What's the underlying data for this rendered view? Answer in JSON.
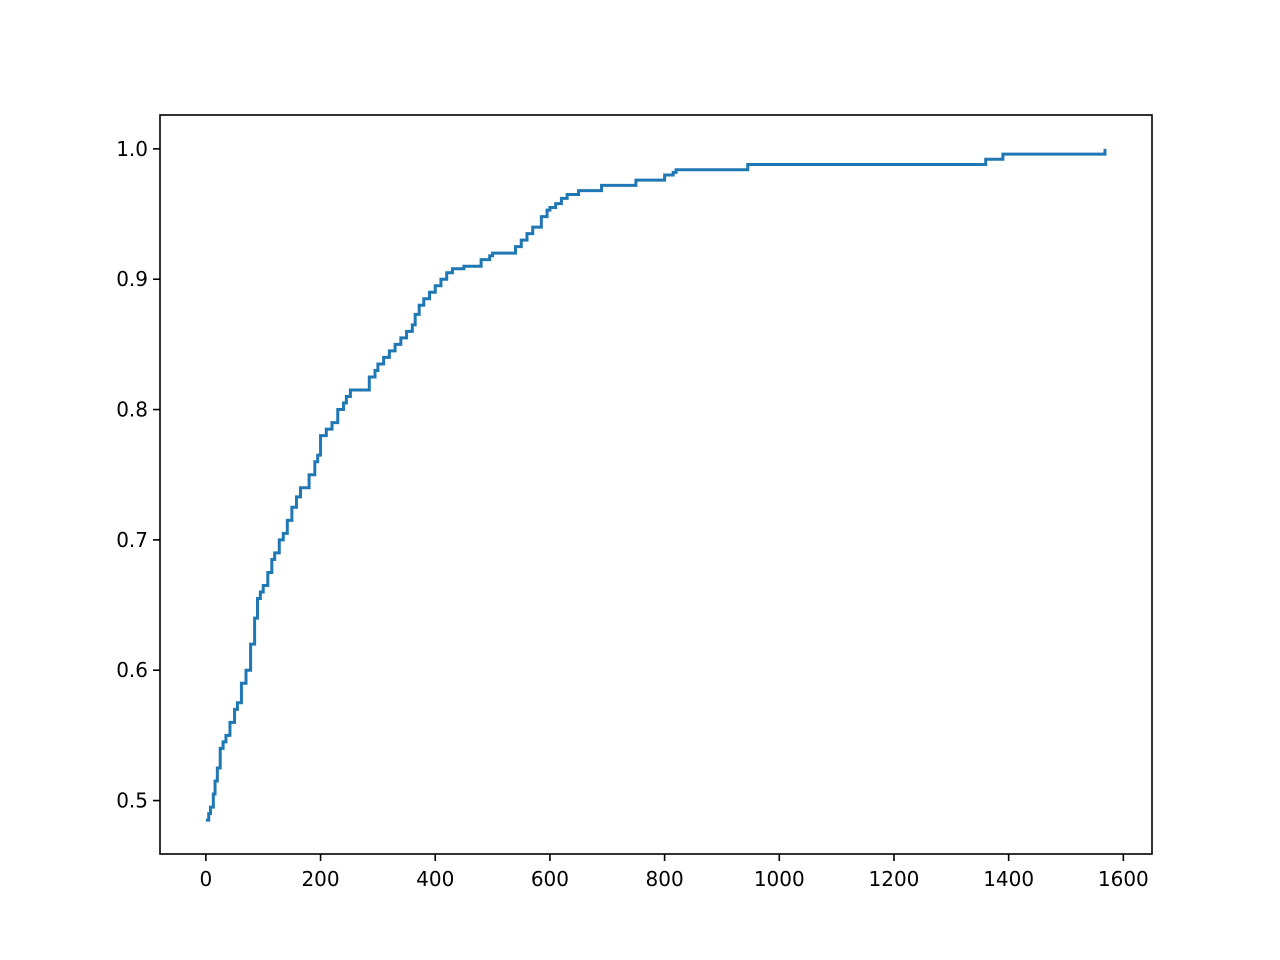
{
  "chart_data": {
    "type": "line",
    "title": "",
    "xlabel": "",
    "ylabel": "",
    "xlim": [
      -80,
      1650
    ],
    "ylim": [
      0.459,
      1.026
    ],
    "x_ticks": [
      0,
      200,
      400,
      600,
      800,
      1000,
      1200,
      1400,
      1600
    ],
    "x_tick_labels": [
      "0",
      "200",
      "400",
      "600",
      "800",
      "1000",
      "1200",
      "1400",
      "1600"
    ],
    "y_ticks": [
      0.5,
      0.6,
      0.7,
      0.8,
      0.9,
      1.0
    ],
    "y_tick_labels": [
      "0.5",
      "0.6",
      "0.7",
      "0.8",
      "0.9",
      "1.0"
    ],
    "grid": false,
    "legend": null,
    "series": [
      {
        "color": "#1f77b4",
        "style": "step-post",
        "x": [
          0,
          5,
          8,
          13,
          16,
          20,
          25,
          30,
          35,
          42,
          50,
          55,
          62,
          70,
          78,
          85,
          90,
          95,
          100,
          108,
          115,
          120,
          128,
          135,
          142,
          150,
          158,
          165,
          170,
          180,
          190,
          195,
          200,
          210,
          215,
          220,
          230,
          240,
          245,
          252,
          260,
          270,
          285,
          295,
          300,
          310,
          320,
          330,
          340,
          350,
          360,
          365,
          372,
          380,
          390,
          400,
          410,
          420,
          430,
          450,
          480,
          495,
          500,
          540,
          550,
          560,
          570,
          585,
          595,
          600,
          610,
          620,
          630,
          650,
          690,
          750,
          800,
          815,
          820,
          900,
          945,
          1000,
          1200,
          1350,
          1360,
          1390,
          1550,
          1568
        ],
        "y": [
          0.485,
          0.49,
          0.495,
          0.505,
          0.515,
          0.525,
          0.54,
          0.545,
          0.55,
          0.56,
          0.57,
          0.575,
          0.59,
          0.6,
          0.62,
          0.64,
          0.655,
          0.66,
          0.665,
          0.675,
          0.685,
          0.69,
          0.7,
          0.705,
          0.715,
          0.725,
          0.733,
          0.74,
          0.74,
          0.75,
          0.76,
          0.765,
          0.78,
          0.785,
          0.785,
          0.79,
          0.8,
          0.805,
          0.81,
          0.815,
          0.815,
          0.815,
          0.825,
          0.83,
          0.835,
          0.84,
          0.845,
          0.85,
          0.855,
          0.86,
          0.865,
          0.873,
          0.88,
          0.885,
          0.89,
          0.895,
          0.9,
          0.905,
          0.908,
          0.91,
          0.915,
          0.918,
          0.92,
          0.925,
          0.93,
          0.935,
          0.94,
          0.948,
          0.953,
          0.955,
          0.958,
          0.962,
          0.965,
          0.968,
          0.972,
          0.976,
          0.98,
          0.982,
          0.984,
          0.984,
          0.988,
          0.988,
          0.988,
          0.988,
          0.992,
          0.996,
          0.996,
          1.0
        ]
      }
    ]
  }
}
